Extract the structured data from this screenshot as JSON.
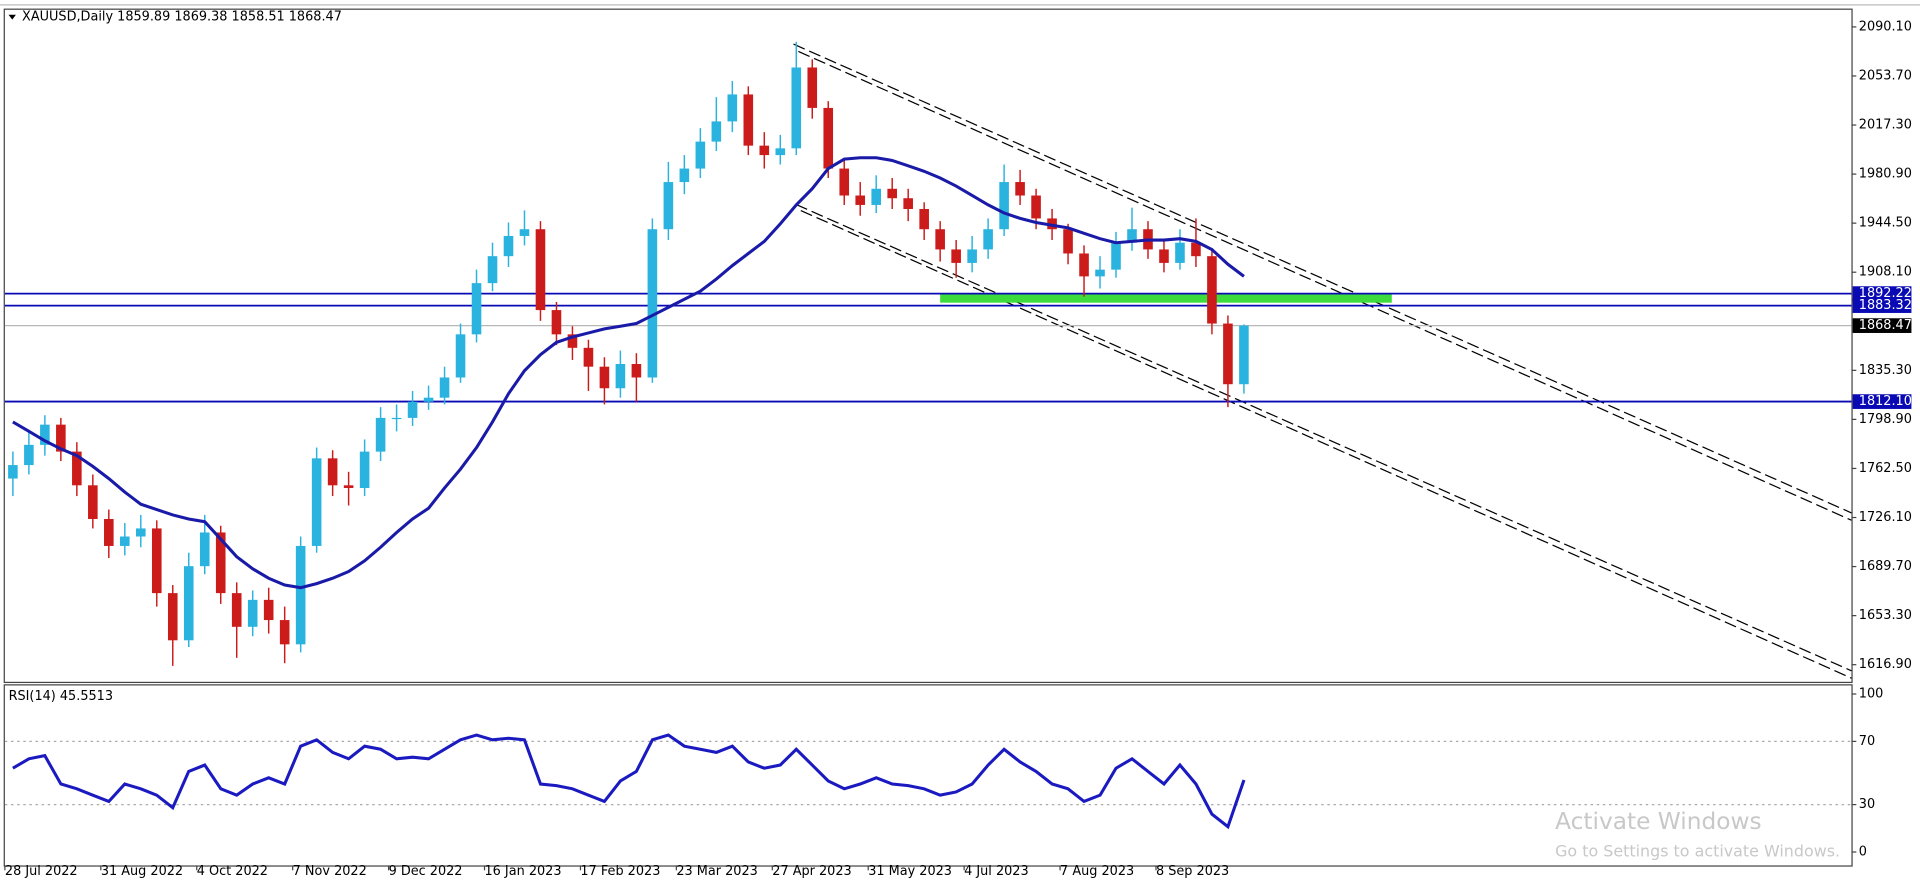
{
  "chart_data": [
    {
      "type": "candlestick",
      "title": "XAUUSD,Daily  1859.89 1869.38 1858.51 1868.47",
      "up_color": "#2bb3e0",
      "down_color": "#cc1b1b",
      "xlim": [
        0,
        462
      ],
      "ylim": [
        1604.2,
        2102.8
      ],
      "yticks": [
        {
          "value": 2090.1,
          "label": "2090.10"
        },
        {
          "value": 2053.7,
          "label": "2053.70"
        },
        {
          "value": 2017.3,
          "label": "2017.30"
        },
        {
          "value": 1980.9,
          "label": "1980.90"
        },
        {
          "value": 1944.5,
          "label": "1944.50"
        },
        {
          "value": 1908.1,
          "label": "1908.10"
        },
        {
          "value": 1835.3,
          "label": "1835.30"
        },
        {
          "value": 1798.9,
          "label": "1798.90"
        },
        {
          "value": 1762.5,
          "label": "1762.50"
        },
        {
          "value": 1726.1,
          "label": "1726.10"
        },
        {
          "value": 1689.7,
          "label": "1689.70"
        },
        {
          "value": 1653.3,
          "label": "1653.30"
        },
        {
          "value": 1616.9,
          "label": "1616.90"
        }
      ],
      "x": [
        2,
        6,
        10,
        14,
        18,
        22,
        26,
        30,
        34,
        38,
        42,
        46,
        50,
        54,
        58,
        62,
        66,
        70,
        74,
        78,
        82,
        86,
        90,
        94,
        98,
        102,
        106,
        110,
        114,
        118,
        122,
        126,
        130,
        134,
        138,
        142,
        146,
        150,
        154,
        158,
        162,
        166,
        170,
        174,
        178,
        182,
        186,
        190,
        194,
        198,
        202,
        206,
        210,
        214,
        218,
        222,
        226,
        230,
        234,
        238,
        242,
        246,
        250,
        254,
        258,
        262,
        266,
        270,
        274,
        278,
        282,
        286,
        290,
        294,
        298,
        302,
        306,
        310
      ],
      "open": [
        1755,
        1765,
        1780,
        1795,
        1775,
        1750,
        1725,
        1705,
        1712,
        1718,
        1670,
        1635,
        1690,
        1715,
        1670,
        1645,
        1665,
        1650,
        1632,
        1705,
        1770,
        1750,
        1748,
        1775,
        1800,
        1800,
        1812,
        1815,
        1830,
        1862,
        1900,
        1920,
        1935,
        1940,
        1880,
        1862,
        1852,
        1838,
        1822,
        1840,
        1830,
        1940,
        1975,
        1985,
        2005,
        2020,
        2040,
        2002,
        1995,
        2000,
        2060,
        2030,
        1985,
        1965,
        1958,
        1970,
        1963,
        1955,
        1940,
        1925,
        1915,
        1925,
        1940,
        1975,
        1965,
        1948,
        1940,
        1922,
        1905,
        1910,
        1930,
        1940,
        1925,
        1915,
        1930,
        1920,
        1870,
        1825
      ],
      "high": [
        1775,
        1790,
        1802,
        1800,
        1782,
        1758,
        1732,
        1722,
        1728,
        1724,
        1676,
        1700,
        1728,
        1720,
        1678,
        1672,
        1674,
        1660,
        1712,
        1778,
        1776,
        1760,
        1784,
        1808,
        1810,
        1820,
        1824,
        1838,
        1870,
        1910,
        1930,
        1945,
        1954,
        1946,
        1886,
        1868,
        1858,
        1845,
        1850,
        1848,
        1948,
        1990,
        1995,
        2015,
        2038,
        2050,
        2046,
        2012,
        2010,
        2079,
        2066,
        2035,
        1992,
        1975,
        1980,
        1978,
        1970,
        1960,
        1946,
        1932,
        1935,
        1948,
        1988,
        1984,
        1970,
        1955,
        1944,
        1928,
        1920,
        1938,
        1956,
        1946,
        1932,
        1940,
        1948,
        1926,
        1876,
        1869.38
      ],
      "low": [
        1742,
        1758,
        1772,
        1768,
        1742,
        1718,
        1696,
        1698,
        1704,
        1660,
        1616,
        1630,
        1684,
        1662,
        1622,
        1638,
        1640,
        1618,
        1626,
        1700,
        1742,
        1735,
        1742,
        1768,
        1790,
        1794,
        1806,
        1810,
        1826,
        1856,
        1894,
        1912,
        1928,
        1872,
        1854,
        1843,
        1820,
        1810,
        1815,
        1812,
        1826,
        1932,
        1966,
        1978,
        1998,
        2012,
        1995,
        1985,
        1988,
        1995,
        2022,
        1978,
        1958,
        1950,
        1952,
        1955,
        1946,
        1932,
        1916,
        1904,
        1908,
        1918,
        1935,
        1958,
        1940,
        1932,
        1914,
        1890,
        1896,
        1904,
        1924,
        1918,
        1908,
        1910,
        1912,
        1862,
        1808,
        1818
      ],
      "close": [
        1765,
        1780,
        1795,
        1775,
        1750,
        1725,
        1705,
        1712,
        1718,
        1670,
        1635,
        1690,
        1715,
        1670,
        1645,
        1665,
        1650,
        1632,
        1705,
        1770,
        1750,
        1748,
        1775,
        1800,
        1800,
        1812,
        1815,
        1830,
        1862,
        1900,
        1920,
        1935,
        1940,
        1880,
        1862,
        1852,
        1838,
        1822,
        1840,
        1830,
        1940,
        1975,
        1985,
        2005,
        2020,
        2040,
        2002,
        1995,
        2000,
        2060,
        2030,
        1985,
        1965,
        1958,
        1970,
        1963,
        1955,
        1940,
        1925,
        1915,
        1925,
        1940,
        1975,
        1965,
        1948,
        1940,
        1922,
        1905,
        1910,
        1930,
        1940,
        1925,
        1915,
        1930,
        1920,
        1870,
        1825,
        1868.47
      ],
      "ma": {
        "color": "#1a1aa8",
        "values": [
          1797,
          1790,
          1783,
          1777,
          1772,
          1764,
          1755,
          1745,
          1736,
          1732,
          1728,
          1725,
          1723,
          1710,
          1697,
          1688,
          1681,
          1676,
          1674,
          1677,
          1681,
          1686,
          1694,
          1704,
          1715,
          1725,
          1733,
          1748,
          1762,
          1778,
          1797,
          1818,
          1835,
          1847,
          1856,
          1860,
          1863,
          1866,
          1868,
          1870,
          1876,
          1882,
          1888,
          1894,
          1903,
          1913,
          1922,
          1931,
          1944,
          1958,
          1970,
          1985,
          1992,
          1993,
          1993,
          1991,
          1987,
          1983,
          1978,
          1972,
          1965,
          1958,
          1952,
          1948,
          1945,
          1943,
          1941,
          1937,
          1933,
          1930,
          1931,
          1932,
          1932,
          1933,
          1931,
          1925,
          1914,
          1905
        ]
      },
      "levels": [
        {
          "value": 1892.22,
          "label": "1892.22",
          "color": "#0a0ab4"
        },
        {
          "value": 1883.32,
          "label": "1883.32",
          "color": "#0a0ab4"
        },
        {
          "value": 1868.47,
          "label": "1868.47",
          "color": "#000000"
        },
        {
          "value": 1812.1,
          "label": "1812.10",
          "color": "#0a0ab4"
        }
      ],
      "zone": {
        "xlim": [
          234,
          347
        ],
        "ylim": [
          1885.5,
          1892
        ],
        "color": "#3cdc3c"
      }
    },
    {
      "type": "line",
      "title": "RSI(14) 45.5513",
      "color": "#1a1ac0",
      "xlim": [
        0,
        462
      ],
      "ylim": [
        -8.5,
        105.4
      ],
      "yticks": [
        100,
        70,
        30,
        0
      ],
      "dotted_levels": [
        70,
        30
      ],
      "xticks": [
        {
          "value": 0,
          "label": "28 Jul 2022"
        },
        {
          "value": 24,
          "label": "31 Aug 2022"
        },
        {
          "value": 48,
          "label": "4 Oct 2022"
        },
        {
          "value": 72,
          "label": "7 Nov 2022"
        },
        {
          "value": 96,
          "label": "9 Dec 2022"
        },
        {
          "value": 120,
          "label": "16 Jan 2023"
        },
        {
          "value": 144,
          "label": "17 Feb 2023"
        },
        {
          "value": 168,
          "label": "23 Mar 2023"
        },
        {
          "value": 192,
          "label": "27 Apr 2023"
        },
        {
          "value": 216,
          "label": "31 May 2023"
        },
        {
          "value": 240,
          "label": "4 Jul 2023"
        },
        {
          "value": 264,
          "label": "7 Aug 2023"
        },
        {
          "value": 288,
          "label": "8 Sep 2023"
        }
      ],
      "x": [
        2,
        6,
        10,
        14,
        18,
        22,
        26,
        30,
        34,
        38,
        42,
        46,
        50,
        54,
        58,
        62,
        66,
        70,
        74,
        78,
        82,
        86,
        90,
        94,
        98,
        102,
        106,
        110,
        114,
        118,
        122,
        126,
        130,
        134,
        138,
        142,
        146,
        150,
        154,
        158,
        162,
        166,
        170,
        174,
        178,
        182,
        186,
        190,
        194,
        198,
        202,
        206,
        210,
        214,
        218,
        222,
        226,
        230,
        234,
        238,
        242,
        246,
        250,
        254,
        258,
        262,
        266,
        270,
        274,
        278,
        282,
        286,
        290,
        294,
        298,
        302,
        306,
        310
      ],
      "values": [
        53,
        59,
        61,
        43,
        40,
        36,
        32,
        43,
        40,
        36,
        28,
        51,
        55,
        40,
        36,
        43,
        47,
        43,
        67,
        71,
        63,
        59,
        67,
        65,
        59,
        60,
        59,
        65,
        71,
        74,
        71,
        72,
        71,
        43,
        42,
        40,
        36,
        32,
        45,
        51,
        71,
        74,
        67,
        65,
        63,
        67,
        57,
        53,
        55,
        65,
        55,
        45,
        40,
        43,
        47,
        43,
        42,
        40,
        36,
        38,
        43,
        55,
        65,
        57,
        51,
        43,
        40,
        32,
        36,
        53,
        59,
        51,
        43,
        55,
        43,
        24,
        16,
        45.5513
      ]
    }
  ],
  "watermark": {
    "title": "Activate Windows",
    "subtitle": "Go to Settings to activate Windows."
  }
}
